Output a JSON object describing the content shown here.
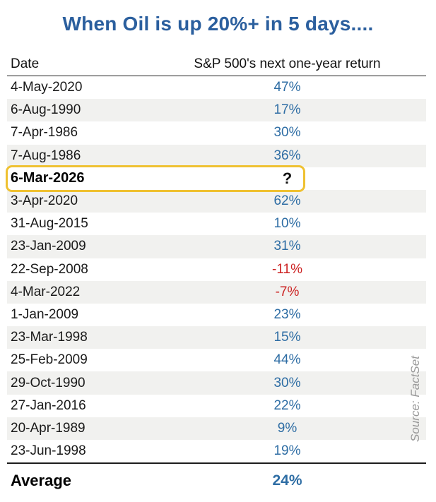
{
  "title": "When Oil is up 20%+ in 5 days....",
  "table": {
    "columns": [
      "Date",
      "S&P 500's next one-year return"
    ],
    "rows": [
      {
        "date": "4-May-2020",
        "return": "47%",
        "tone": "positive",
        "highlighted": false
      },
      {
        "date": "6-Aug-1990",
        "return": "17%",
        "tone": "positive",
        "highlighted": false
      },
      {
        "date": "7-Apr-1986",
        "return": "30%",
        "tone": "positive",
        "highlighted": false
      },
      {
        "date": "7-Aug-1986",
        "return": "36%",
        "tone": "positive",
        "highlighted": false
      },
      {
        "date": "6-Mar-2026",
        "return": "?",
        "tone": "pending",
        "highlighted": true
      },
      {
        "date": "3-Apr-2020",
        "return": "62%",
        "tone": "positive",
        "highlighted": false
      },
      {
        "date": "31-Aug-2015",
        "return": "10%",
        "tone": "positive",
        "highlighted": false
      },
      {
        "date": "23-Jan-2009",
        "return": "31%",
        "tone": "positive",
        "highlighted": false
      },
      {
        "date": "22-Sep-2008",
        "return": "-11%",
        "tone": "negative",
        "highlighted": false
      },
      {
        "date": "4-Mar-2022",
        "return": "-7%",
        "tone": "negative",
        "highlighted": false
      },
      {
        "date": "1-Jan-2009",
        "return": "23%",
        "tone": "positive",
        "highlighted": false
      },
      {
        "date": "23-Mar-1998",
        "return": "15%",
        "tone": "positive",
        "highlighted": false
      },
      {
        "date": "25-Feb-2009",
        "return": "44%",
        "tone": "positive",
        "highlighted": false
      },
      {
        "date": "29-Oct-1990",
        "return": "30%",
        "tone": "positive",
        "highlighted": false
      },
      {
        "date": "27-Jan-2016",
        "return": "22%",
        "tone": "positive",
        "highlighted": false
      },
      {
        "date": "20-Apr-1989",
        "return": "9%",
        "tone": "positive",
        "highlighted": false
      },
      {
        "date": "23-Jun-1998",
        "return": "19%",
        "tone": "positive",
        "highlighted": false
      }
    ],
    "footer": {
      "label": "Average",
      "value": "24%"
    }
  },
  "source": "Source: FactSet",
  "colors": {
    "title_blue": "#2B5F9E",
    "value_blue": "#2E6DA4",
    "value_red": "#CC2222",
    "highlight_gold": "#EFC131",
    "stripe_gray": "#F1F1EF"
  },
  "chart_data": {
    "type": "table",
    "title": "When Oil is up 20%+ in 5 days....",
    "columns": [
      "Date",
      "S&P 500's next one-year return"
    ],
    "rows": [
      [
        "4-May-2020",
        47
      ],
      [
        "6-Aug-1990",
        17
      ],
      [
        "7-Apr-1986",
        30
      ],
      [
        "7-Aug-1986",
        36
      ],
      [
        "6-Mar-2026",
        null
      ],
      [
        "3-Apr-2020",
        62
      ],
      [
        "31-Aug-2015",
        10
      ],
      [
        "23-Jan-2009",
        31
      ],
      [
        "22-Sep-2008",
        -11
      ],
      [
        "4-Mar-2022",
        -7
      ],
      [
        "1-Jan-2009",
        23
      ],
      [
        "23-Mar-1998",
        15
      ],
      [
        "25-Feb-2009",
        44
      ],
      [
        "29-Oct-1990",
        30
      ],
      [
        "27-Jan-2016",
        22
      ],
      [
        "20-Apr-1989",
        9
      ],
      [
        "23-Jun-1998",
        19
      ]
    ],
    "highlighted_row": "6-Mar-2026",
    "average_percent": 24,
    "value_unit": "%",
    "negative_values_colored": "red",
    "positive_values_colored": "blue",
    "source": "Source: FactSet"
  }
}
